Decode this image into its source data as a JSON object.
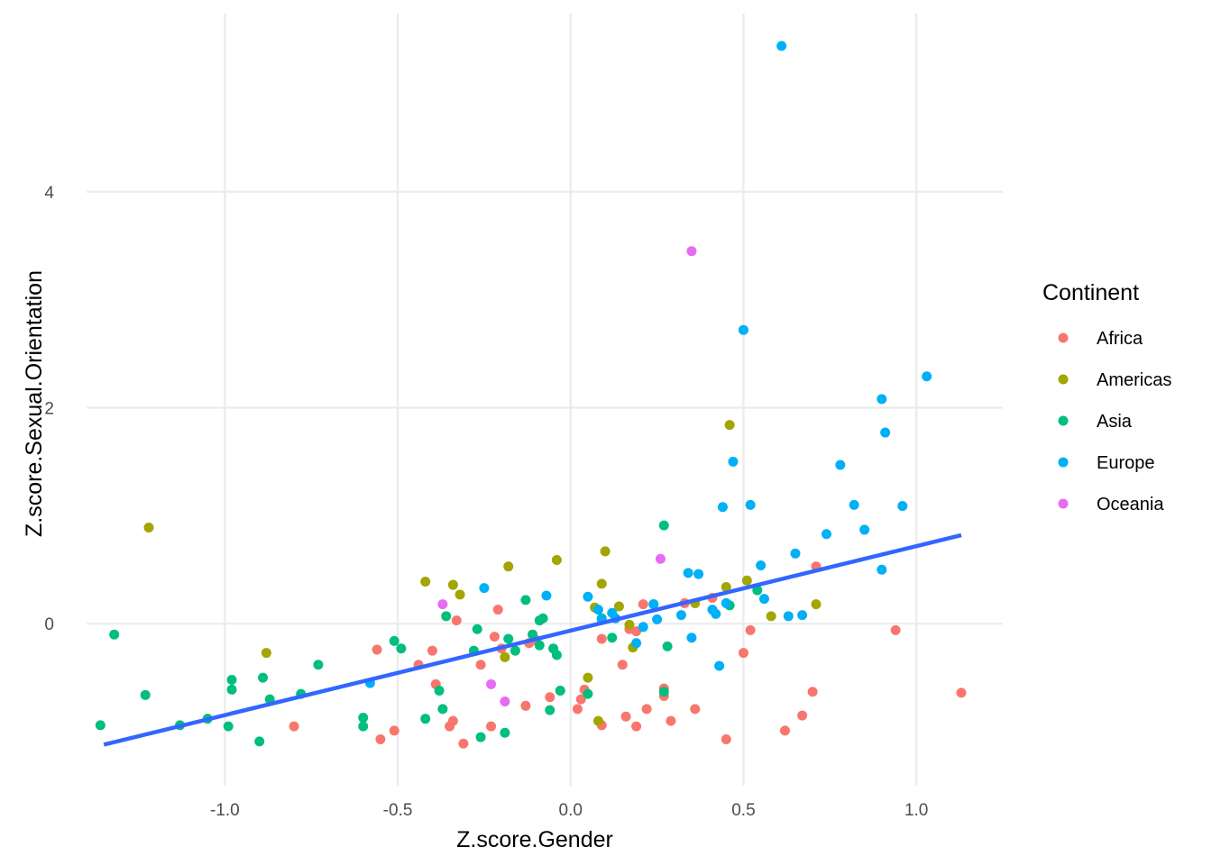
{
  "chart_data": {
    "type": "scatter",
    "xlabel": "Z.score.Gender",
    "ylabel": "Z.score.Sexual.Orientation",
    "xlim": [
      -1.4,
      1.25
    ],
    "ylim": [
      -1.5,
      5.65
    ],
    "x_ticks": [
      -1.0,
      -0.5,
      0.0,
      0.5,
      1.0
    ],
    "x_tick_labels": [
      "-1.0",
      "-0.5",
      "0.0",
      "0.5",
      "1.0"
    ],
    "y_ticks": [
      0,
      2,
      4
    ],
    "y_tick_labels": [
      "0",
      "2",
      "4"
    ],
    "grid": true,
    "legend": {
      "title": "Continent",
      "position": "right"
    },
    "regression_line": {
      "x": [
        -1.35,
        1.13
      ],
      "y": [
        -1.12,
        0.82
      ],
      "color": "#3366ff"
    },
    "series": [
      {
        "name": "Africa",
        "color": "#f8766d",
        "x": [
          -0.8,
          -0.55,
          -0.51,
          -0.56,
          -0.4,
          -0.44,
          -0.39,
          -0.35,
          -0.34,
          -0.33,
          -0.31,
          -0.26,
          -0.23,
          -0.22,
          -0.21,
          -0.2,
          -0.13,
          -0.12,
          -0.1,
          -0.06,
          -0.03,
          0.02,
          0.03,
          0.04,
          0.09,
          0.09,
          0.15,
          0.16,
          0.17,
          0.19,
          0.19,
          0.21,
          0.22,
          0.27,
          0.27,
          0.29,
          0.33,
          0.36,
          0.41,
          0.45,
          0.5,
          0.52,
          0.62,
          0.67,
          0.7,
          0.71,
          0.94,
          1.13
        ],
        "y": [
          -0.95,
          -1.07,
          -0.99,
          -0.24,
          -0.25,
          -0.38,
          -0.56,
          -0.95,
          -0.9,
          0.03,
          -1.11,
          -0.38,
          -0.95,
          -0.12,
          0.13,
          -0.23,
          -0.76,
          -0.18,
          -0.15,
          -0.68,
          -0.62,
          -0.79,
          -0.7,
          -0.61,
          -0.14,
          -0.94,
          -0.38,
          -0.86,
          -0.05,
          -0.07,
          -0.95,
          0.18,
          -0.79,
          -0.6,
          -0.67,
          -0.9,
          0.19,
          -0.79,
          0.24,
          -1.07,
          -0.27,
          -0.06,
          -0.99,
          -0.85,
          -0.63,
          0.53,
          -0.06,
          -0.64
        ]
      },
      {
        "name": "Americas",
        "color": "#a3a500",
        "x": [
          -1.22,
          -0.88,
          -0.42,
          -0.34,
          -0.32,
          -0.19,
          -0.18,
          -0.04,
          0.05,
          0.07,
          0.08,
          0.09,
          0.1,
          0.14,
          0.17,
          0.18,
          0.36,
          0.45,
          0.46,
          0.51,
          0.58,
          0.71
        ],
        "y": [
          0.89,
          -0.27,
          0.39,
          0.36,
          0.27,
          -0.31,
          0.53,
          0.59,
          -0.5,
          0.15,
          -0.9,
          0.37,
          0.67,
          0.16,
          -0.01,
          -0.22,
          0.19,
          0.34,
          1.84,
          0.4,
          0.07,
          0.18
        ]
      },
      {
        "name": "Asia",
        "color": "#00bf7d",
        "x": [
          -1.36,
          -1.32,
          -1.23,
          -1.13,
          -1.05,
          -0.99,
          -0.98,
          -0.98,
          -0.9,
          -0.89,
          -0.87,
          -0.78,
          -0.73,
          -0.6,
          -0.6,
          -0.51,
          -0.49,
          -0.42,
          -0.38,
          -0.37,
          -0.36,
          -0.28,
          -0.27,
          -0.26,
          -0.19,
          -0.18,
          -0.16,
          -0.13,
          -0.11,
          -0.09,
          -0.09,
          -0.08,
          -0.06,
          -0.05,
          -0.04,
          -0.03,
          0.05,
          0.09,
          0.12,
          0.24,
          0.27,
          0.27,
          0.28,
          0.46,
          0.54
        ],
        "y": [
          -0.94,
          -0.1,
          -0.66,
          -0.94,
          -0.88,
          -0.95,
          -0.61,
          -0.52,
          -1.09,
          -0.5,
          -0.7,
          -0.65,
          -0.38,
          -0.95,
          -0.87,
          -0.16,
          -0.23,
          -0.88,
          -0.62,
          -0.79,
          0.07,
          -0.25,
          -0.05,
          -1.05,
          -1.01,
          -0.14,
          -0.25,
          0.22,
          -0.1,
          -0.2,
          0.03,
          0.05,
          -0.8,
          -0.23,
          -0.29,
          -0.62,
          -0.65,
          0.05,
          -0.13,
          0.18,
          -0.63,
          0.91,
          -0.21,
          0.17,
          0.31
        ]
      },
      {
        "name": "Europe",
        "color": "#00b0f6",
        "x": [
          -0.58,
          -0.25,
          -0.07,
          0.05,
          0.08,
          0.09,
          0.12,
          0.13,
          0.19,
          0.21,
          0.24,
          0.25,
          0.32,
          0.34,
          0.35,
          0.37,
          0.41,
          0.42,
          0.43,
          0.44,
          0.45,
          0.47,
          0.5,
          0.52,
          0.55,
          0.56,
          0.61,
          0.63,
          0.65,
          0.67,
          0.74,
          0.78,
          0.82,
          0.85,
          0.9,
          0.9,
          0.91,
          0.96,
          1.03
        ],
        "y": [
          -0.55,
          0.33,
          0.26,
          0.25,
          0.13,
          0.04,
          0.1,
          0.05,
          -0.18,
          -0.03,
          0.18,
          0.04,
          0.08,
          0.47,
          -0.13,
          0.46,
          0.13,
          0.09,
          -0.39,
          1.08,
          0.19,
          1.5,
          2.72,
          1.1,
          0.54,
          0.23,
          5.35,
          0.07,
          0.65,
          0.08,
          0.83,
          1.47,
          1.1,
          0.87,
          2.08,
          0.5,
          1.77,
          1.09,
          2.29
        ]
      },
      {
        "name": "Oceania",
        "color": "#e76bf3",
        "x": [
          -0.37,
          -0.23,
          -0.19,
          0.26,
          0.35
        ],
        "y": [
          0.18,
          -0.56,
          -0.72,
          0.6,
          3.45
        ]
      }
    ]
  }
}
